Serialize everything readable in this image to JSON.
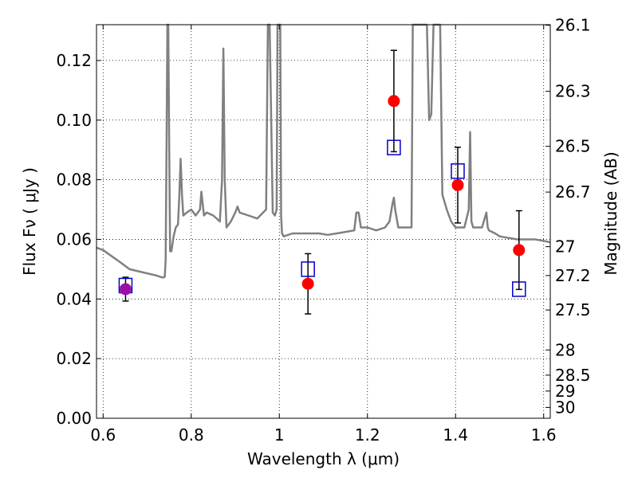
{
  "chart_data": {
    "type": "scatter",
    "xlabel": "Wavelength  λ (μm)",
    "ylabel": "Flux  Fν  ( μJy )",
    "ylabel_right": "Magnitude (AB)",
    "xlim": [
      0.585,
      1.615
    ],
    "ylim": [
      0.0,
      0.132
    ],
    "grid": true,
    "x_ticks": [
      0.6,
      0.8,
      1.0,
      1.2,
      1.4,
      1.6
    ],
    "x_tick_labels": [
      "0.6",
      "0.8",
      "1",
      "1.2",
      "1.4",
      "1.6"
    ],
    "y_ticks": [
      0.0,
      0.02,
      0.04,
      0.06,
      0.08,
      0.1,
      0.12
    ],
    "y_tick_labels": [
      "0.00",
      "0.02",
      "0.04",
      "0.06",
      "0.08",
      "0.10",
      "0.12"
    ],
    "mag_ticks": [
      26.1,
      26.3,
      26.5,
      26.7,
      27,
      27.2,
      27.5,
      28,
      28.5,
      29,
      30
    ],
    "mag_tick_labels": [
      "26.1",
      "26.3",
      "26.5",
      "26.7",
      "27",
      "27.2",
      "27.5",
      "28",
      "28.5",
      "29",
      "30"
    ],
    "colors": {
      "model": "#808080",
      "observed": "#ff0000",
      "highlight": "#9b0fa8",
      "synthetic": "#0000cc",
      "errorbar": "#000000",
      "grid": "#000000"
    },
    "series": [
      {
        "kind": "observed",
        "points": [
          {
            "x": 0.651,
            "y": 0.0433,
            "err": 0.004,
            "highlight": true
          },
          {
            "x": 1.065,
            "y": 0.0451,
            "err": 0.0101
          },
          {
            "x": 1.26,
            "y": 0.1064,
            "err": 0.017
          },
          {
            "x": 1.405,
            "y": 0.0782,
            "err": 0.0127
          },
          {
            "x": 1.544,
            "y": 0.0564,
            "err": 0.0132
          }
        ]
      },
      {
        "kind": "synthetic",
        "points": [
          {
            "x": 0.651,
            "y": 0.0445
          },
          {
            "x": 1.065,
            "y": 0.05
          },
          {
            "x": 1.26,
            "y": 0.0908
          },
          {
            "x": 1.405,
            "y": 0.0829
          },
          {
            "x": 1.544,
            "y": 0.0433
          }
        ]
      },
      {
        "kind": "model_spectrum",
        "x": [
          0.585,
          0.6,
          0.62,
          0.64,
          0.66,
          0.68,
          0.7,
          0.72,
          0.735,
          0.74,
          0.742,
          0.744,
          0.746,
          0.748,
          0.75,
          0.752,
          0.755,
          0.76,
          0.765,
          0.77,
          0.773,
          0.776,
          0.779,
          0.782,
          0.79,
          0.8,
          0.81,
          0.82,
          0.823,
          0.826,
          0.829,
          0.835,
          0.85,
          0.865,
          0.87,
          0.873,
          0.876,
          0.88,
          0.89,
          0.9,
          0.905,
          0.91,
          0.93,
          0.95,
          0.97,
          0.974,
          0.976,
          0.978,
          0.985,
          0.99,
          0.994,
          0.996,
          0.998,
          1.002,
          1.004,
          1.006,
          1.01,
          1.03,
          1.05,
          1.07,
          1.09,
          1.11,
          1.13,
          1.15,
          1.17,
          1.175,
          1.18,
          1.185,
          1.2,
          1.22,
          1.24,
          1.25,
          1.257,
          1.26,
          1.263,
          1.27,
          1.29,
          1.3,
          1.303,
          1.306,
          1.32,
          1.33,
          1.335,
          1.34,
          1.345,
          1.35,
          1.355,
          1.36,
          1.365,
          1.37,
          1.38,
          1.39,
          1.4,
          1.42,
          1.43,
          1.433,
          1.436,
          1.44,
          1.46,
          1.47,
          1.473,
          1.476,
          1.49,
          1.5,
          1.52,
          1.54,
          1.56,
          1.58,
          1.6,
          1.615
        ],
        "y": [
          0.0572,
          0.0564,
          0.0543,
          0.0522,
          0.05,
          0.0493,
          0.0486,
          0.0479,
          0.0472,
          0.0474,
          0.053,
          0.09,
          0.132,
          0.132,
          0.09,
          0.056,
          0.056,
          0.061,
          0.064,
          0.065,
          0.075,
          0.087,
          0.075,
          0.068,
          0.069,
          0.07,
          0.068,
          0.07,
          0.076,
          0.072,
          0.068,
          0.069,
          0.068,
          0.066,
          0.08,
          0.124,
          0.08,
          0.064,
          0.066,
          0.069,
          0.071,
          0.069,
          0.068,
          0.067,
          0.07,
          0.132,
          0.132,
          0.132,
          0.069,
          0.068,
          0.07,
          0.132,
          0.132,
          0.132,
          0.068,
          0.062,
          0.061,
          0.062,
          0.062,
          0.062,
          0.062,
          0.0615,
          0.062,
          0.0625,
          0.063,
          0.069,
          0.069,
          0.064,
          0.064,
          0.063,
          0.064,
          0.066,
          0.072,
          0.074,
          0.07,
          0.064,
          0.064,
          0.064,
          0.132,
          0.132,
          0.132,
          0.132,
          0.132,
          0.1,
          0.102,
          0.132,
          0.132,
          0.132,
          0.132,
          0.075,
          0.07,
          0.066,
          0.064,
          0.064,
          0.07,
          0.096,
          0.066,
          0.064,
          0.064,
          0.069,
          0.064,
          0.063,
          0.062,
          0.061,
          0.0605,
          0.06,
          0.06,
          0.06,
          0.0595,
          0.059
        ]
      }
    ]
  }
}
